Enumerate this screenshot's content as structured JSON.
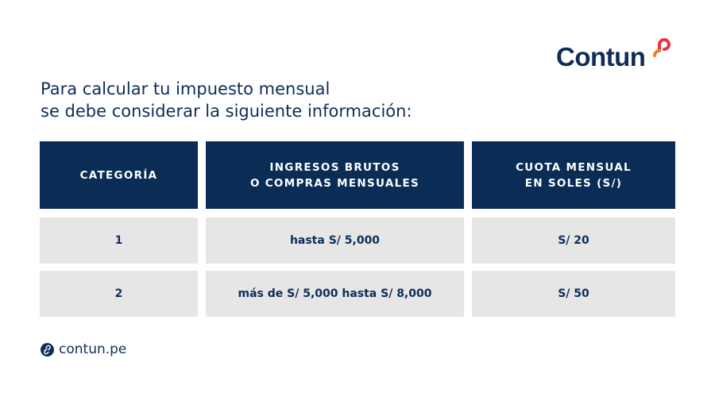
{
  "header": {
    "logo": "Contun",
    "intro": [
      "Para calcular tu impuesto mensual",
      "se debe considerar la siguiente información:"
    ]
  },
  "table": {
    "headers": [
      [
        "CATEGORÍA"
      ],
      [
        "INGRESOS BRUTOS",
        "O COMPRAS MENSUALES"
      ],
      [
        "CUOTA MENSUAL",
        "EN SOLES (S/)"
      ]
    ],
    "rows": [
      [
        "1",
        "hasta S/ 5,000",
        "S/ 20"
      ],
      [
        "2",
        "más de S/ 5,000 hasta S/ 8,000",
        "S/ 50"
      ]
    ]
  },
  "footer": {
    "website": "contun.pe"
  }
}
